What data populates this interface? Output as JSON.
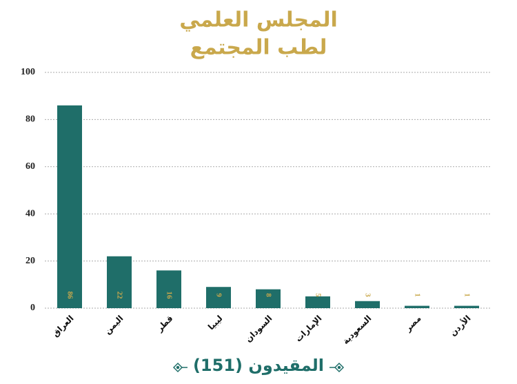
{
  "chart_data": {
    "type": "bar",
    "title_lines": [
      "المجلس العلمي",
      "لطب المجتمع"
    ],
    "categories": [
      "العراق",
      "اليمن",
      "قطر",
      "ليبيا",
      "السودان",
      "الإمارات",
      "السعودية",
      "مصر",
      "الأردن"
    ],
    "values": [
      86,
      22,
      16,
      9,
      8,
      5,
      3,
      1,
      1
    ],
    "color": "#1f6e69",
    "label_color": "#c9a84c",
    "ylim": [
      0,
      100
    ],
    "yticks": [
      0,
      20,
      40,
      60,
      80,
      100
    ],
    "grid": true,
    "footer": "المقيدون (151)"
  }
}
